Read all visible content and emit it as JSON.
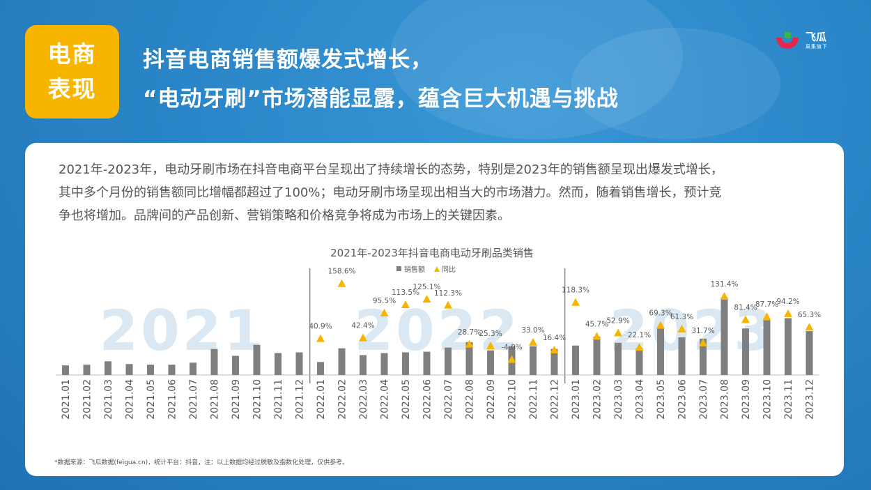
{
  "badge": {
    "line1": "电商",
    "line2": "表现"
  },
  "headline": {
    "line1": "抖音电商销售额爆发式增长，",
    "line2": "“电动牙刷”市场潜能显露，蕴含巨大机遇与挑战"
  },
  "logo": {
    "name": "飞瓜",
    "sub": "果集旗下"
  },
  "paragraph": {
    "line1": "2021年-2023年，电动牙刷市场在抖音电商平台呈现出了持续增长的态势，特别是2023年的销售额呈现出爆发式增长，",
    "line2": "其中多个月份的销售额同比增幅都超过了100%；电动牙刷市场呈现出相当大的市场潜力。然而，随着销售增长，预计竞",
    "line3": "争也将增加。品牌间的产品创新、营销策略和价格竞争将成为市场上的关键因素。"
  },
  "source_note": "*数据来源：飞瓜数据(feigua.cn)，统计平台：抖音，注：以上数据均经过脱敏及指数化处理，仅供参考。",
  "chart_data": {
    "type": "bar",
    "title": "2021年-2023年抖音电商电动牙刷品类销售",
    "legend": {
      "position": "top",
      "items": [
        "销售额",
        "同比"
      ]
    },
    "year_watermarks": [
      "2021",
      "2022",
      "2023"
    ],
    "categories": [
      "2021.01",
      "2021.02",
      "2021.03",
      "2021.04",
      "2021.05",
      "2021.06",
      "2021.07",
      "2021.08",
      "2021.09",
      "2021.10",
      "2021.11",
      "2021.12",
      "2022.01",
      "2022.02",
      "2022.03",
      "2022.04",
      "2022.05",
      "2022.06",
      "2022.07",
      "2022.08",
      "2022.09",
      "2022.10",
      "2022.11",
      "2022.12",
      "2023.01",
      "2023.02",
      "2023.03",
      "2023.04",
      "2023.05",
      "2023.06",
      "2023.07",
      "2023.08",
      "2023.09",
      "2023.10",
      "2023.11",
      "2023.12"
    ],
    "series": [
      {
        "name": "销售额",
        "type": "bar",
        "color": "#7f7f7f",
        "values": [
          14,
          15,
          20,
          16,
          15,
          15,
          18,
          38,
          28,
          44,
          32,
          33,
          19,
          39,
          29,
          32,
          33,
          34,
          40,
          48,
          36,
          42,
          42,
          38,
          43,
          56,
          47,
          39,
          68,
          55,
          53,
          113,
          68,
          80,
          83,
          64
        ]
      },
      {
        "name": "同比",
        "type": "marker",
        "color": "#f7b500",
        "values": [
          null,
          null,
          null,
          null,
          null,
          null,
          null,
          null,
          null,
          null,
          null,
          null,
          40.9,
          158.6,
          42.4,
          95.5,
          113.5,
          125.1,
          112.3,
          28.7,
          25.3,
          -4.0,
          33.0,
          16.4,
          118.3,
          45.7,
          52.9,
          22.1,
          69.3,
          61.3,
          31.7,
          131.4,
          81.4,
          87.7,
          94.2,
          65.3
        ],
        "labels": [
          null,
          null,
          null,
          null,
          null,
          null,
          null,
          null,
          null,
          null,
          null,
          null,
          "40.9%",
          "158.6%",
          "42.4%",
          "95.5%",
          "113.5%",
          "125.1%",
          "112.3%",
          "28.7%",
          "25.3%",
          "-4.0%",
          "33.0%",
          "16.4%",
          "118.3%",
          "45.7%",
          "52.9%",
          "22.1%",
          "69.3%",
          "61.3%",
          "31.7%",
          "131.4%",
          "81.4%",
          "87.7%",
          "94.2%",
          "65.3%"
        ]
      }
    ],
    "grid": false
  }
}
